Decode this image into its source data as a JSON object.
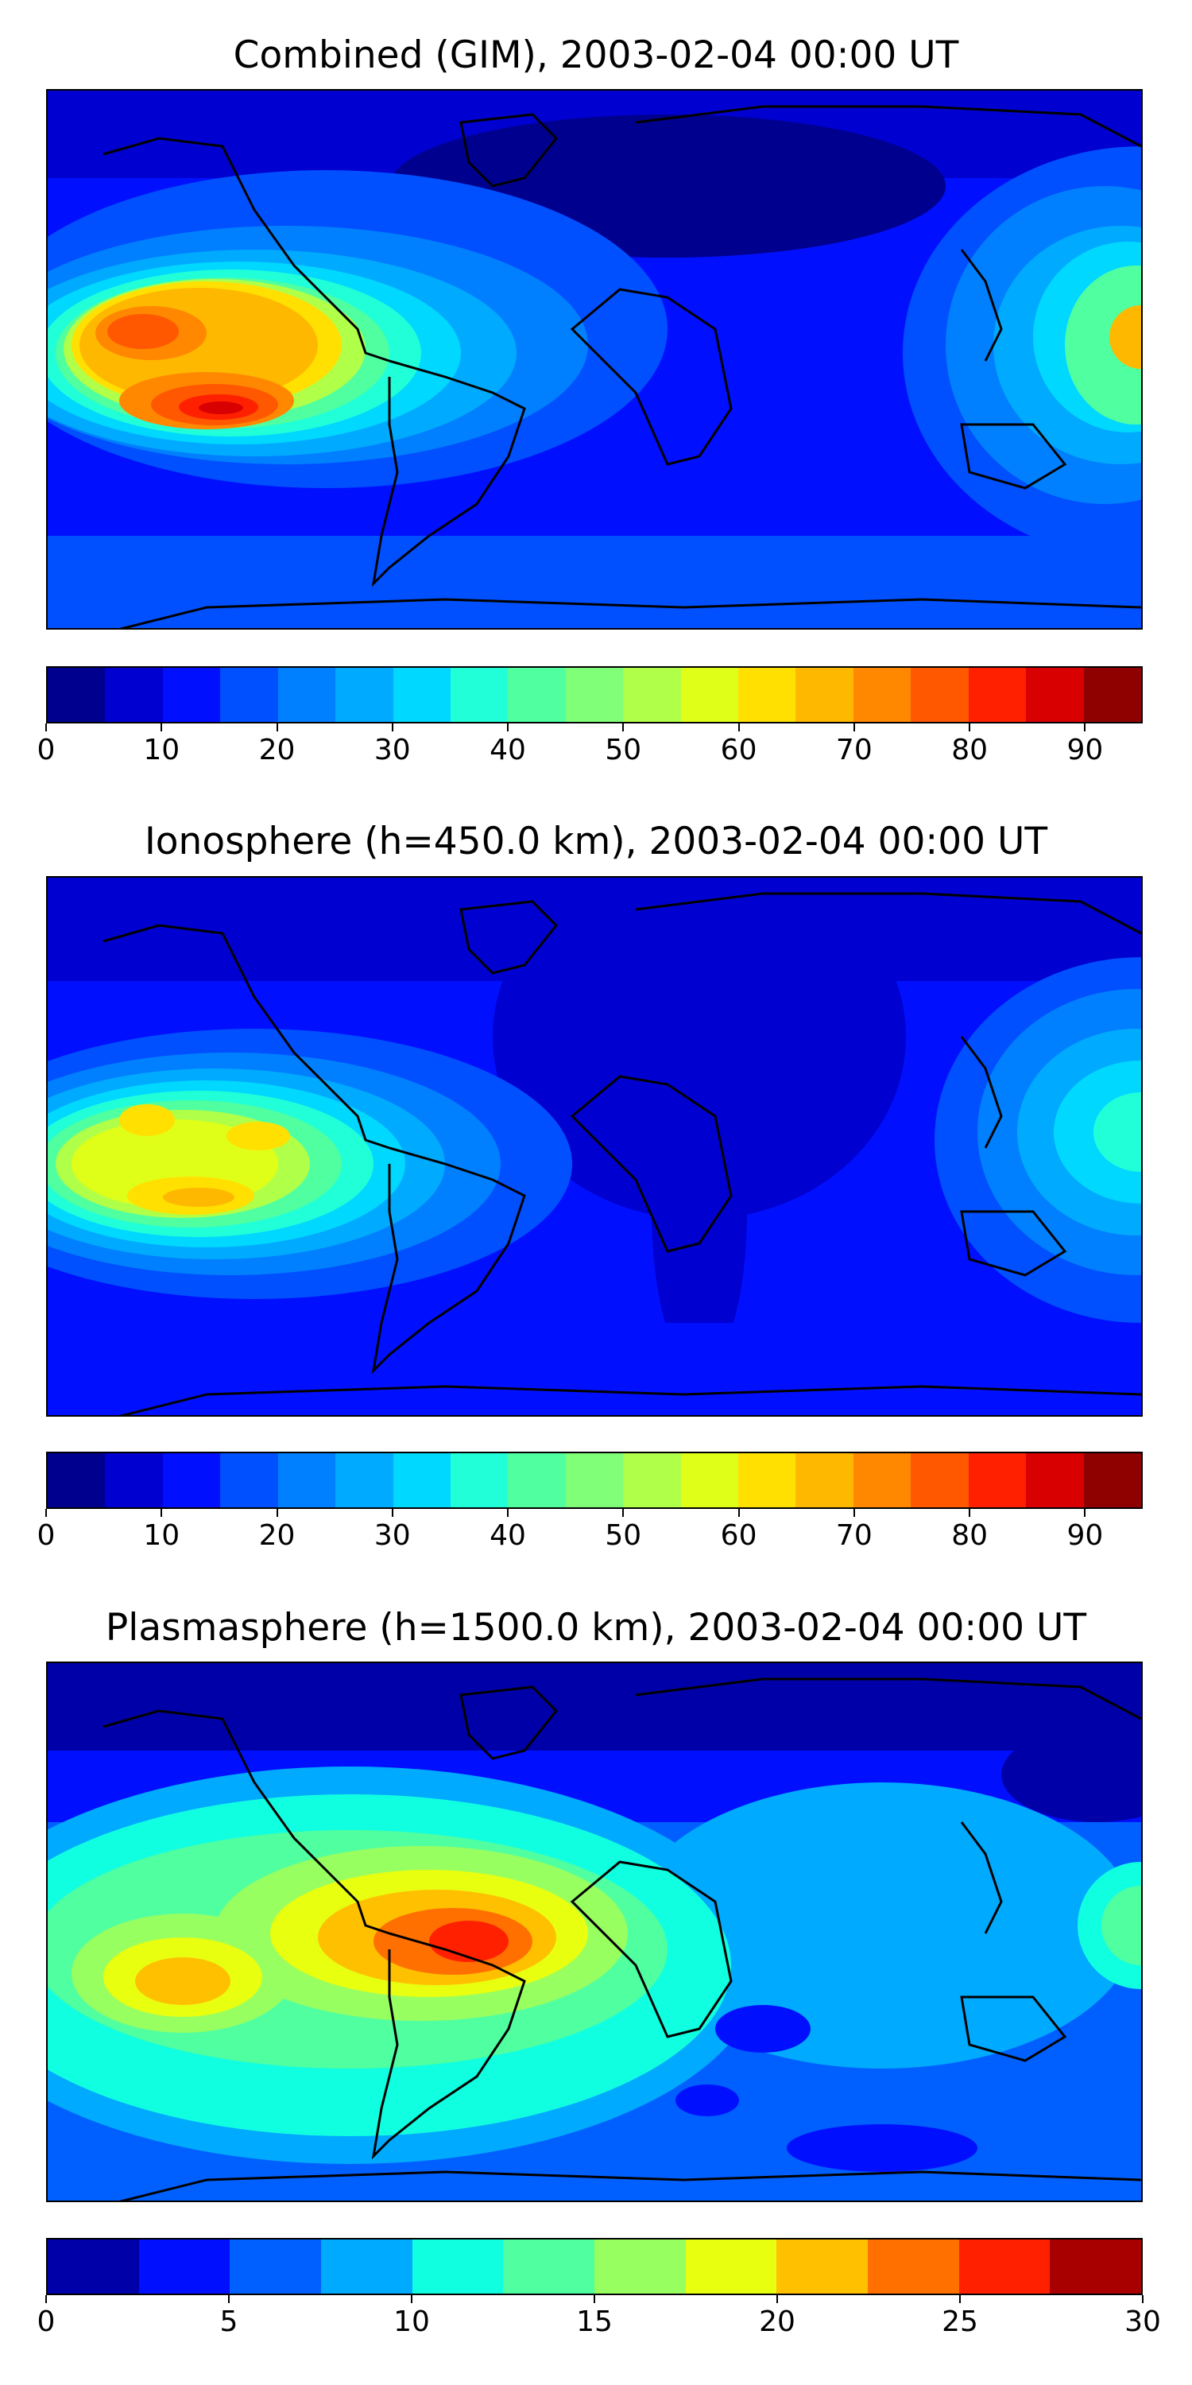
{
  "palette": {
    "p1": [
      "#00008f",
      "#0000d0",
      "#0010ff",
      "#0050ff",
      "#0080ff",
      "#00aaff",
      "#00d8ff",
      "#20ffd8",
      "#50ffa0",
      "#80ff78",
      "#b0ff48",
      "#e0ff18",
      "#ffe000",
      "#ffb800",
      "#ff8800",
      "#ff5800",
      "#ff2000",
      "#d80000",
      "#8f0000"
    ],
    "p3": [
      "#0000a8",
      "#0010ff",
      "#0060ff",
      "#00aaff",
      "#10ffe0",
      "#50ffa0",
      "#98ff60",
      "#e8ff10",
      "#ffc000",
      "#ff7000",
      "#ff2000",
      "#a80000"
    ]
  },
  "panels": [
    {
      "title": "Combined (GIM), 2003-02-04 00:00 UT",
      "colorbar": {
        "ticks": [
          "0",
          "10",
          "20",
          "30",
          "40",
          "50",
          "60",
          "70",
          "80",
          "90"
        ],
        "min": 0,
        "max": 95
      }
    },
    {
      "title": "Ionosphere  (h=450.0 km), 2003-02-04 00:00 UT",
      "colorbar": {
        "ticks": [
          "0",
          "10",
          "20",
          "30",
          "40",
          "50",
          "60",
          "70",
          "80",
          "90"
        ],
        "min": 0,
        "max": 95
      }
    },
    {
      "title": "Plasmasphere (h=1500.0 km), 2003-02-04 00:00 UT",
      "colorbar": {
        "ticks": [
          "0",
          "5",
          "10",
          "15",
          "20",
          "25",
          "30"
        ],
        "min": 0,
        "max": 30
      }
    }
  ]
}
